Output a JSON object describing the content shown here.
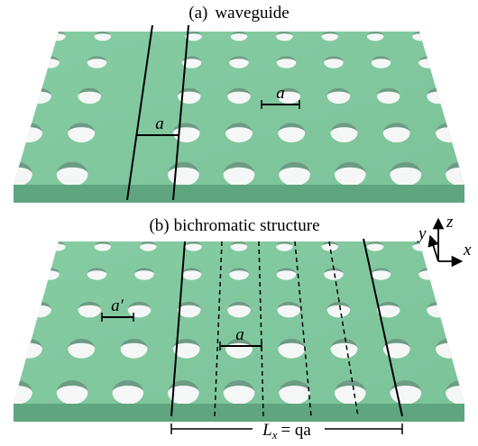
{
  "panels": [
    {
      "label": "(a)",
      "title": "waveguide",
      "annotations": [
        "a",
        "a"
      ]
    },
    {
      "label": "(b)",
      "title": "bichromatic structure",
      "annotations": [
        "a′",
        "a"
      ],
      "length_label": {
        "symbol": "L",
        "subscript": "x",
        "equation": "= qa"
      }
    }
  ],
  "axes": {
    "x": "x",
    "y": "y",
    "z": "z"
  }
}
